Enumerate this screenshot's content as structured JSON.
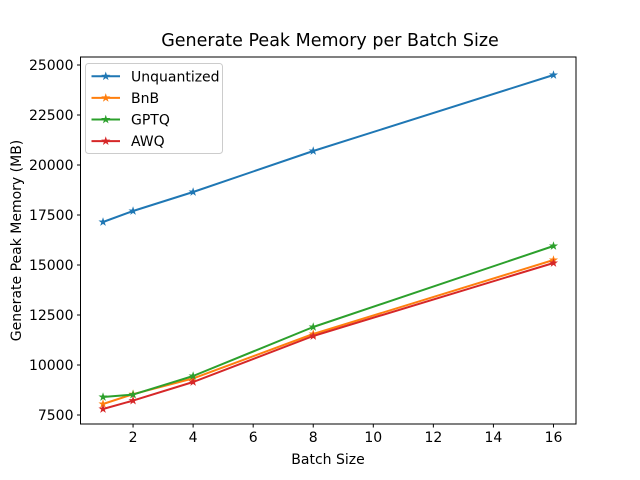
{
  "figure": {
    "background": "#ffffff",
    "axis_color": "#000000"
  },
  "chart_data": {
    "type": "line",
    "title": "Generate Peak Memory per Batch Size",
    "xlabel": "Batch Size",
    "ylabel": "Generate Peak Memory (MB)",
    "marker": "star",
    "grid": false,
    "legend_position": "upper left",
    "x": [
      1,
      2,
      4,
      8,
      16
    ],
    "series": [
      {
        "name": "Unquantized",
        "color": "#1f77b4",
        "values": [
          17150,
          17700,
          18650,
          20700,
          24500
        ]
      },
      {
        "name": "BnB",
        "color": "#ff7f0e",
        "values": [
          8050,
          8540,
          9330,
          11550,
          15250
        ]
      },
      {
        "name": "GPTQ",
        "color": "#2ca02c",
        "values": [
          8400,
          8520,
          9450,
          11900,
          15950
        ]
      },
      {
        "name": "AWQ",
        "color": "#d62728",
        "values": [
          7800,
          8220,
          9150,
          11450,
          15100
        ]
      }
    ],
    "xticks": [
      2,
      4,
      6,
      8,
      10,
      12,
      14,
      16
    ],
    "yticks": [
      7500,
      10000,
      12500,
      15000,
      17500,
      20000,
      22500,
      25000
    ],
    "xlim": [
      0.25,
      16.75
    ],
    "ylim": [
      7050,
      25400
    ]
  }
}
